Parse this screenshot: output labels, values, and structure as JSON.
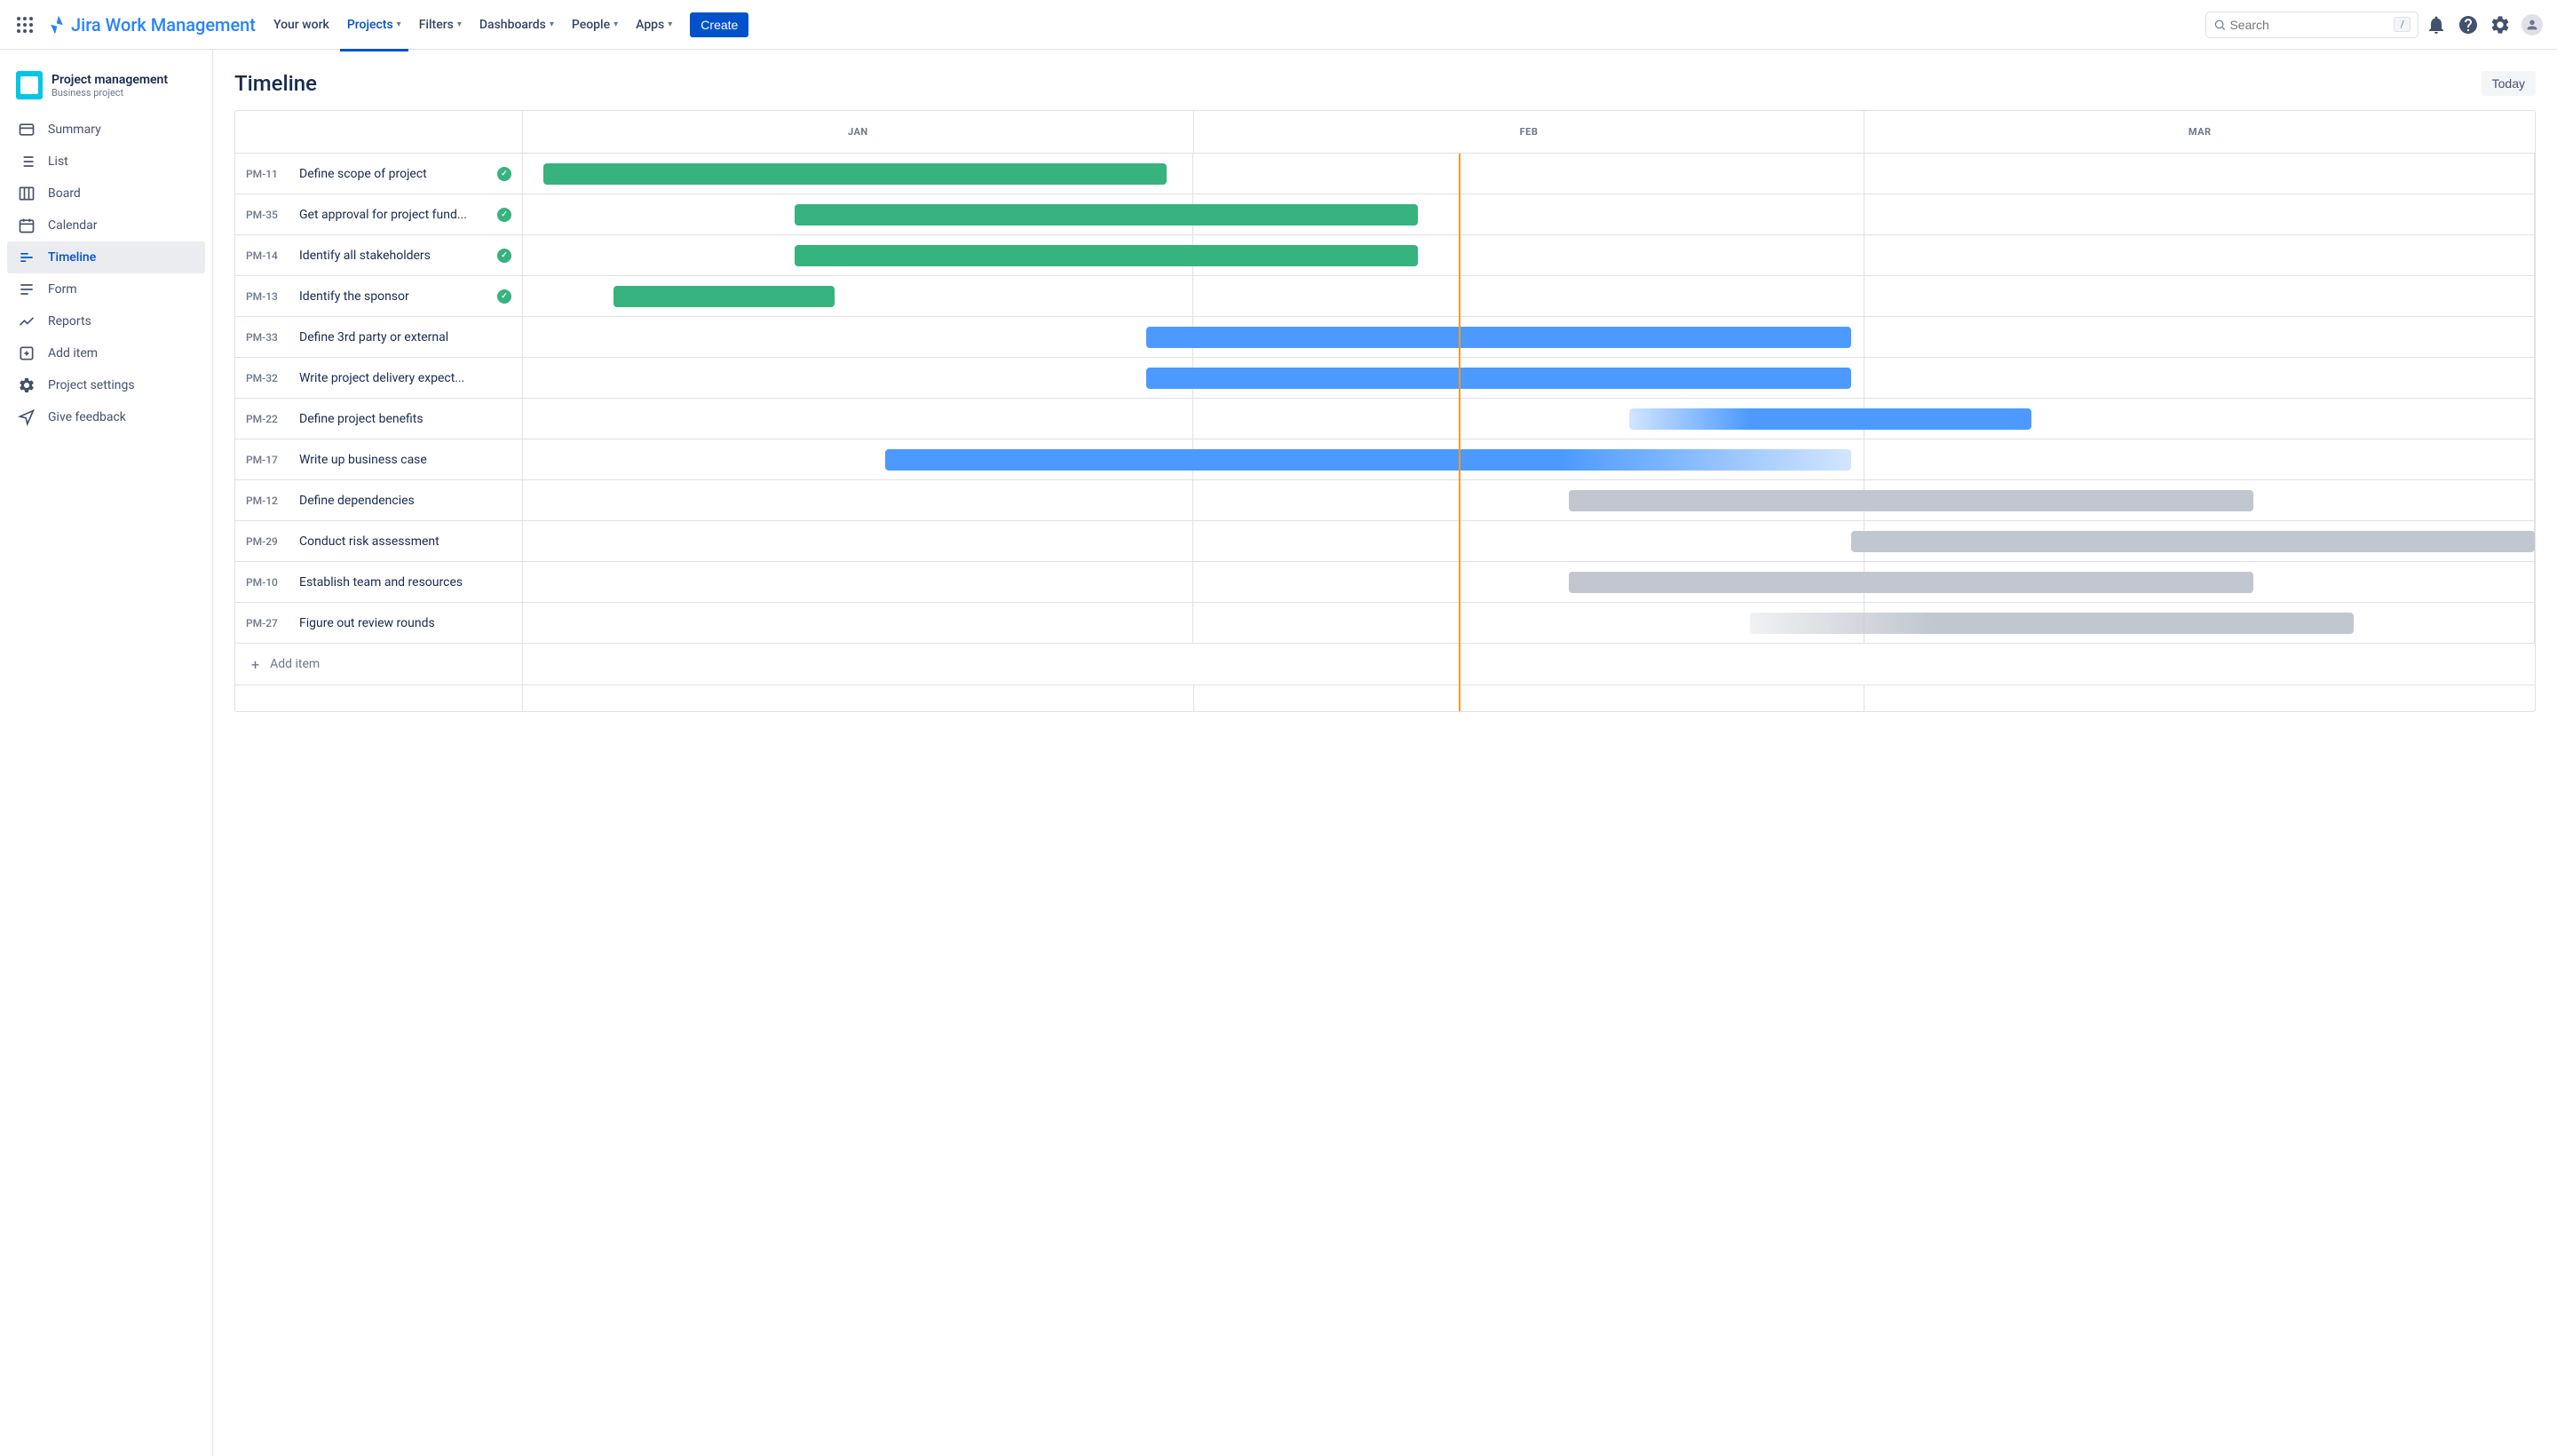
{
  "product_name": "Jira Work Management",
  "top_nav": {
    "items": [
      "Your work",
      "Projects",
      "Filters",
      "Dashboards",
      "People",
      "Apps"
    ],
    "active_index": 1,
    "create_label": "Create",
    "search_placeholder": "Search",
    "search_shortcut": "/"
  },
  "project": {
    "name": "Project management",
    "type": "Business project"
  },
  "sidebar": {
    "items": [
      {
        "label": "Summary",
        "icon": "summary"
      },
      {
        "label": "List",
        "icon": "list"
      },
      {
        "label": "Board",
        "icon": "board"
      },
      {
        "label": "Calendar",
        "icon": "calendar"
      },
      {
        "label": "Timeline",
        "icon": "timeline"
      },
      {
        "label": "Form",
        "icon": "form"
      },
      {
        "label": "Reports",
        "icon": "reports"
      },
      {
        "label": "Add item",
        "icon": "add"
      },
      {
        "label": "Project settings",
        "icon": "settings"
      },
      {
        "label": "Give feedback",
        "icon": "feedback"
      }
    ],
    "active_index": 4
  },
  "page": {
    "title": "Timeline",
    "today_label": "Today"
  },
  "timeline": {
    "months": [
      "JAN",
      "FEB",
      "MAR"
    ],
    "today_position_pct": 46.5,
    "add_item_label": "Add item",
    "colors": {
      "done": "#36b37e",
      "in_progress": "#4c9aff",
      "todo": "#c1c7d0"
    },
    "tasks": [
      {
        "key": "PM-11",
        "title": "Define scope of project",
        "done": true,
        "bar": {
          "start_pct": 1,
          "width_pct": 31,
          "color": "#36b37e"
        }
      },
      {
        "key": "PM-35",
        "title": "Get approval for project fund...",
        "done": true,
        "bar": {
          "start_pct": 13.5,
          "width_pct": 31,
          "color": "#36b37e"
        }
      },
      {
        "key": "PM-14",
        "title": "Identify all stakeholders",
        "done": true,
        "bar": {
          "start_pct": 13.5,
          "width_pct": 31,
          "color": "#36b37e"
        }
      },
      {
        "key": "PM-13",
        "title": "Identify the sponsor",
        "done": true,
        "bar": {
          "start_pct": 4.5,
          "width_pct": 11,
          "color": "#36b37e"
        }
      },
      {
        "key": "PM-33",
        "title": "Define 3rd party or external",
        "done": false,
        "bar": {
          "start_pct": 31,
          "width_pct": 35,
          "color": "#4c9aff"
        }
      },
      {
        "key": "PM-32",
        "title": "Write project delivery expect...",
        "done": false,
        "bar": {
          "start_pct": 31,
          "width_pct": 35,
          "color": "#4c9aff"
        }
      },
      {
        "key": "PM-22",
        "title": "Define project benefits",
        "done": false,
        "bar": {
          "start_pct": 55,
          "width_pct": 20,
          "color": "#4c9aff",
          "gradient": "left"
        }
      },
      {
        "key": "PM-17",
        "title": "Write up business case",
        "done": false,
        "bar": {
          "start_pct": 18,
          "width_pct": 48,
          "color": "#4c9aff",
          "gradient": "right"
        }
      },
      {
        "key": "PM-12",
        "title": "Define dependencies",
        "done": false,
        "bar": {
          "start_pct": 52,
          "width_pct": 34,
          "color": "#c1c7d0"
        }
      },
      {
        "key": "PM-29",
        "title": "Conduct risk assessment",
        "done": false,
        "bar": {
          "start_pct": 66,
          "width_pct": 34,
          "color": "#c1c7d0"
        }
      },
      {
        "key": "PM-10",
        "title": "Establish team and resources",
        "done": false,
        "bar": {
          "start_pct": 52,
          "width_pct": 34,
          "color": "#c1c7d0"
        }
      },
      {
        "key": "PM-27",
        "title": "Figure out review rounds",
        "done": false,
        "bar": {
          "start_pct": 61,
          "width_pct": 30,
          "color": "#c1c7d0",
          "gradient": "left"
        }
      }
    ]
  }
}
